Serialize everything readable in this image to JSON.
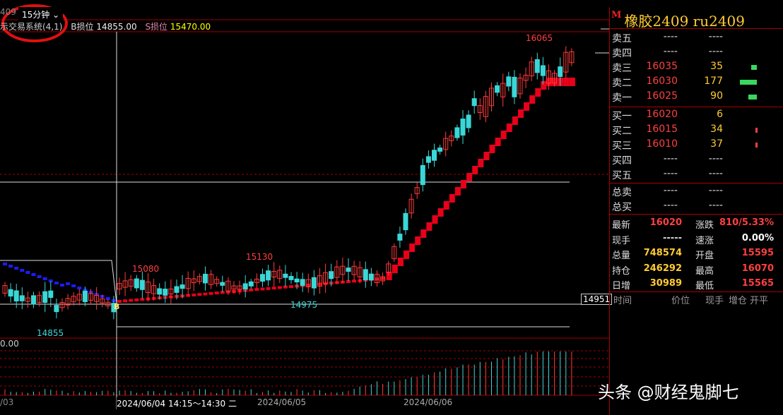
{
  "header": {
    "left_clip": "409",
    "period": "15分钟",
    "period_caret": "⌄",
    "indicator_name": "示交易系统(4,1)",
    "b_stop_label": "B损位",
    "b_stop_value": "14855.00",
    "s_stop_label": "S损位",
    "s_stop_value": "15470.00"
  },
  "chart": {
    "peak_label": "16065",
    "label_15080": "15080",
    "label_15130": "15130",
    "label_14975": "14975",
    "label_14855": "14855",
    "price_tag": "14951",
    "vol_axis_label": "0.00",
    "dates": [
      "/03",
      "2024/06/04 14:15～14:30 二",
      "2024/06/05",
      "2024/06/06"
    ],
    "b_marker": "B",
    "colors": {
      "up": "#ff3a3a",
      "down": "#3ad7d7",
      "stop_red": "#e8001a",
      "stop_blue": "#1c1cff",
      "border": "#a00000"
    }
  },
  "instrument": {
    "marker": "M",
    "name": "橡胶2409",
    "code": "ru2409"
  },
  "orderbook": {
    "asks": [
      {
        "label": "卖五",
        "price": "----",
        "vol": "----"
      },
      {
        "label": "卖四",
        "price": "----",
        "vol": "----"
      },
      {
        "label": "卖三",
        "price": "16035",
        "vol": "35"
      },
      {
        "label": "卖二",
        "price": "16030",
        "vol": "177"
      },
      {
        "label": "卖一",
        "price": "16025",
        "vol": "90"
      }
    ],
    "bids": [
      {
        "label": "买一",
        "price": "16020",
        "vol": "6"
      },
      {
        "label": "买二",
        "price": "16015",
        "vol": "34"
      },
      {
        "label": "买三",
        "price": "16010",
        "vol": "37"
      },
      {
        "label": "买四",
        "price": "----",
        "vol": "----"
      },
      {
        "label": "买五",
        "price": "----",
        "vol": "----"
      }
    ],
    "totals": [
      {
        "label": "总卖",
        "price": "----",
        "vol": "----"
      },
      {
        "label": "总买",
        "price": "----",
        "vol": "----"
      }
    ]
  },
  "stats": {
    "latest_label": "最新",
    "latest": "16020",
    "change_label": "涨跌",
    "change": "810/5.33%",
    "hand_label": "现手",
    "hand": "-----",
    "speed_label": "速涨",
    "speed": "0.00%",
    "volume_label": "总量",
    "volume": "748574",
    "open_label": "开盘",
    "open": "15595",
    "oi_label": "持仓",
    "oi": "246292",
    "high_label": "最高",
    "high": "16070",
    "daily_label": "日增",
    "daily": "30989",
    "low_label": "最低",
    "low": "15565"
  },
  "ticks_header": {
    "time": "时间",
    "price": "价位",
    "hand": "现手",
    "oi_chg": "增仓",
    "open_close": "开平"
  },
  "watermark": "头条 @财经鬼脚七"
}
